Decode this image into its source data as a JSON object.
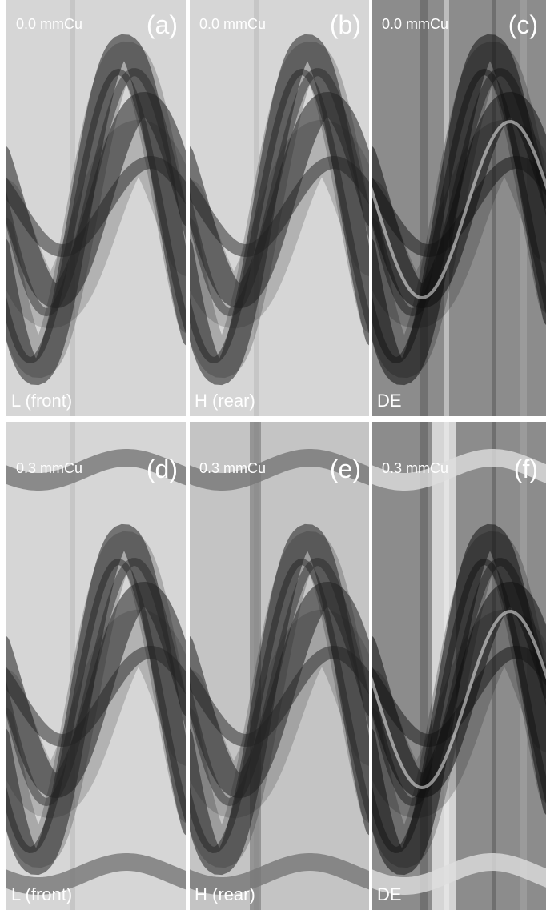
{
  "panels": [
    {
      "filter": "0.0 mmCu",
      "letter": "(a)",
      "label": "L (front)"
    },
    {
      "filter": "0.0 mmCu",
      "letter": "(b)",
      "label": "H (rear)"
    },
    {
      "filter": "0.0 mmCu",
      "letter": "(c)",
      "label": "DE"
    },
    {
      "filter": "0.3 mmCu",
      "letter": "(d)",
      "label": "L (front)"
    },
    {
      "filter": "0.3 mmCu",
      "letter": "(e)",
      "label": "H (rear)"
    },
    {
      "filter": "0.3 mmCu",
      "letter": "(f)",
      "label": "DE"
    }
  ]
}
